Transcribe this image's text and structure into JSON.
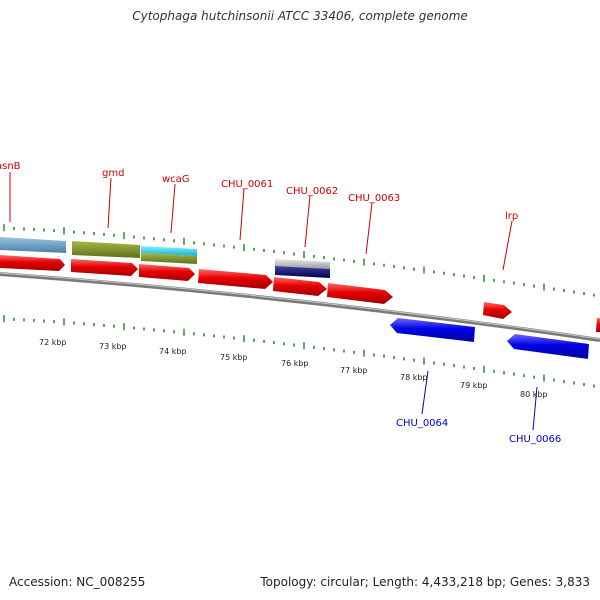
{
  "title": "Cytophaga hutchinsonii ATCC 33406, complete genome",
  "footer": {
    "accession": "Accession: NC_008255",
    "summary": "Topology: circular; Length: 4,433,218 bp; Genes: 3,833"
  },
  "genome": {
    "accession": "NC_008255",
    "topology": "circular",
    "length_bp": 4433218,
    "genes": 3833
  },
  "scale_labels": [
    "72 kbp",
    "73 kbp",
    "74 kbp",
    "75 kbp",
    "76 kbp",
    "77 kbp",
    "78 kbp",
    "79 kbp",
    "80 kbp"
  ],
  "features": [
    {
      "label": "asnB",
      "strand": "+",
      "color": "#e60000"
    },
    {
      "label": "gmd",
      "strand": "+",
      "color": "#e60000"
    },
    {
      "label": "wcaG",
      "strand": "+",
      "color": "#e60000"
    },
    {
      "label": "CHU_0061",
      "strand": "+",
      "color": "#e60000"
    },
    {
      "label": "CHU_0062",
      "strand": "+",
      "color": "#e60000"
    },
    {
      "label": "CHU_0063",
      "strand": "+",
      "color": "#e60000"
    },
    {
      "label": "lrp",
      "strand": "+",
      "color": "#e60000"
    },
    {
      "label": "CHU_0064",
      "strand": "-",
      "color": "#0000e6"
    },
    {
      "label": "CHU_0066",
      "strand": "-",
      "color": "#0000e6"
    }
  ],
  "colors": {
    "plus_label": "#cc0000",
    "minus_label": "#0000cc",
    "tick": "#2e8b2e",
    "backbone": "#888888"
  }
}
